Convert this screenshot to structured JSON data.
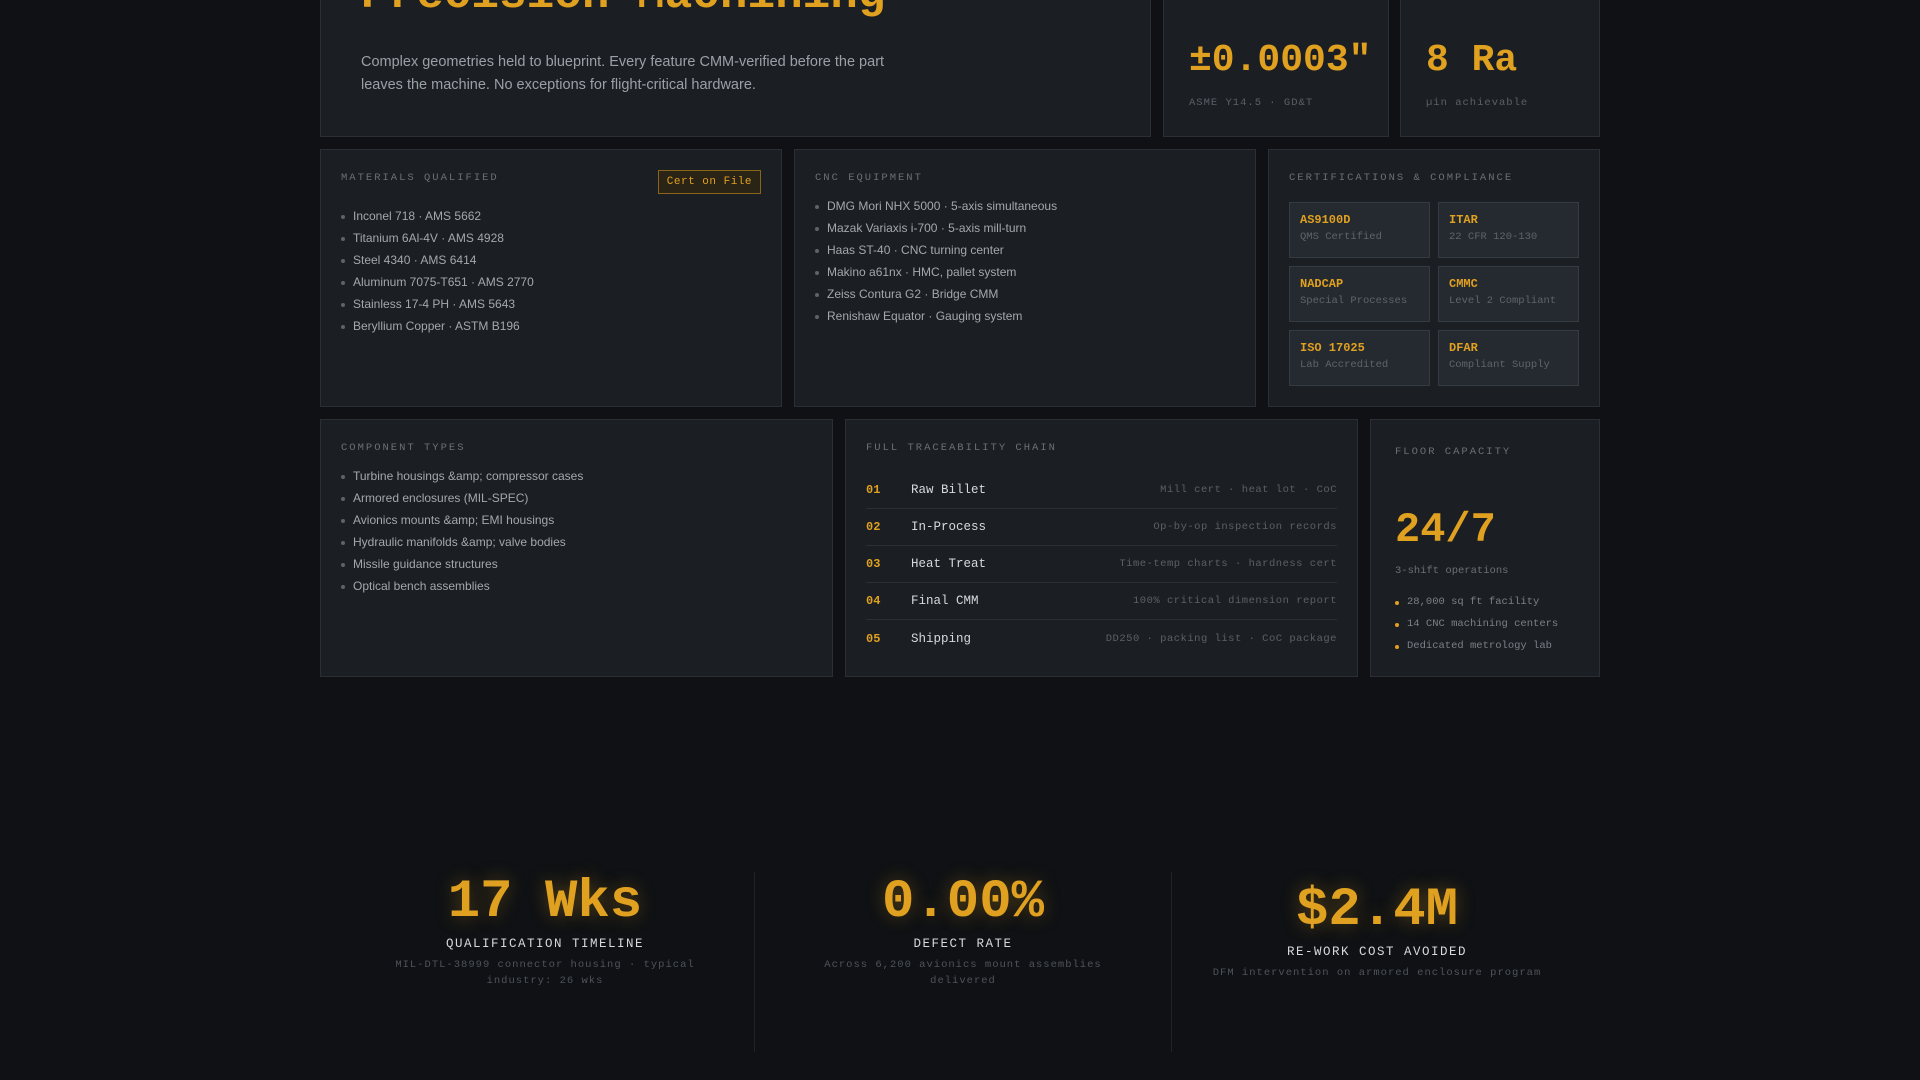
{
  "hero": {
    "title": "Precision Machining",
    "description": "Complex geometries held to blueprint. Every feature CMM-verified before the part leaves the machine. No exceptions for flight-critical hardware."
  },
  "stats": [
    {
      "value": "±0.0003\"",
      "label": "ASME Y14.5 · GD&T"
    },
    {
      "value": "8 Ra",
      "label": "µin achievable"
    }
  ],
  "materials": {
    "heading": "Materials Qualified",
    "badge": "Cert on File",
    "items": [
      "Inconel 718 · AMS 5662",
      "Titanium 6Al-4V · AMS 4928",
      "Steel 4340 · AMS 6414",
      "Aluminum 7075-T651 · AMS 2770",
      "Stainless 17-4 PH · AMS 5643",
      "Beryllium Copper · ASTM B196"
    ]
  },
  "cnc": {
    "heading": "CNC Equipment",
    "items": [
      "DMG Mori NHX 5000 · 5-axis simultaneous",
      "Mazak Variaxis i-700 · 5-axis mill-turn",
      "Haas ST-40 · CNC turning center",
      "Makino a61nx · HMC, pallet system",
      "Zeiss Contura G2 · Bridge CMM",
      "Renishaw Equator · Gauging system"
    ]
  },
  "certs": {
    "heading": "Certifications & Compliance",
    "items": [
      {
        "name": "AS9100D",
        "sub": "QMS Certified"
      },
      {
        "name": "ITAR",
        "sub": "22 CFR 120-130"
      },
      {
        "name": "NADCAP",
        "sub": "Special Processes"
      },
      {
        "name": "CMMC",
        "sub": "Level 2 Compliant"
      },
      {
        "name": "ISO 17025",
        "sub": "Lab Accredited"
      },
      {
        "name": "DFAR",
        "sub": "Compliant Supply"
      }
    ]
  },
  "components": {
    "heading": "Component Types",
    "items": [
      "Turbine housings &amp; compressor cases",
      "Armored enclosures (MIL-SPEC)",
      "Avionics mounts &amp; EMI housings",
      "Hydraulic manifolds &amp; valve bodies",
      "Missile guidance structures",
      "Optical bench assemblies"
    ]
  },
  "trace": {
    "heading": "Full Traceability Chain",
    "rows": [
      {
        "num": "01",
        "stage": "Raw Billet",
        "detail": "Mill cert · heat lot · CoC"
      },
      {
        "num": "02",
        "stage": "In-Process",
        "detail": "Op-by-op inspection records"
      },
      {
        "num": "03",
        "stage": "Heat Treat",
        "detail": "Time-temp charts · hardness cert"
      },
      {
        "num": "04",
        "stage": "Final CMM",
        "detail": "100% critical dimension report"
      },
      {
        "num": "05",
        "stage": "Shipping",
        "detail": "DD250 · packing list · CoC package"
      }
    ]
  },
  "floor": {
    "heading": "Floor Capacity",
    "value": "24/7",
    "shift": "3-shift operations",
    "items": [
      "28,000 sq ft facility",
      "14 CNC machining centers",
      "Dedicated metrology lab"
    ]
  },
  "metrics": [
    {
      "value": "17 Wks",
      "title": "QUALIFICATION TIMELINE",
      "desc": "MIL-DTL-38999 connector housing · typical industry: 26 wks"
    },
    {
      "value": "0.00%",
      "title": "DEFECT RATE",
      "desc": "Across 6,200 avionics mount assemblies delivered"
    },
    {
      "value": "$2.4M",
      "title": "RE-WORK COST AVOIDED",
      "desc": "DFM intervention on armored enclosure program"
    }
  ]
}
